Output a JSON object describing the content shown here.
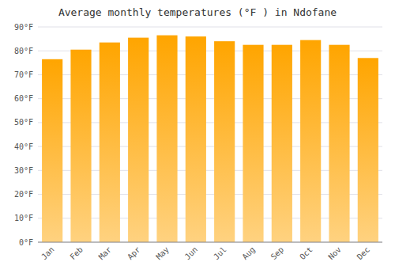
{
  "chart_data": {
    "type": "bar",
    "title": "Average monthly temperatures (°F ) in Ndofane",
    "categories": [
      "Jan",
      "Feb",
      "Mar",
      "Apr",
      "May",
      "Jun",
      "Jul",
      "Aug",
      "Sep",
      "Oct",
      "Nov",
      "Dec"
    ],
    "values": [
      76.5,
      80.5,
      83.5,
      85.5,
      86.5,
      86.0,
      84.0,
      82.5,
      82.5,
      84.5,
      82.5,
      77.0
    ],
    "color": "#FFA500",
    "ylim": [
      0,
      90
    ],
    "yticks": [
      {
        "value": 0,
        "label": "0°F"
      },
      {
        "value": 10,
        "label": "10°F"
      },
      {
        "value": 20,
        "label": "20°F"
      },
      {
        "value": 30,
        "label": "30°F"
      },
      {
        "value": 40,
        "label": "40°F"
      },
      {
        "value": 50,
        "label": "50°F"
      },
      {
        "value": 60,
        "label": "60°F"
      },
      {
        "value": 70,
        "label": "70°F"
      },
      {
        "value": 80,
        "label": "80°F"
      },
      {
        "value": 90,
        "label": "90°F"
      }
    ],
    "grid": true
  }
}
